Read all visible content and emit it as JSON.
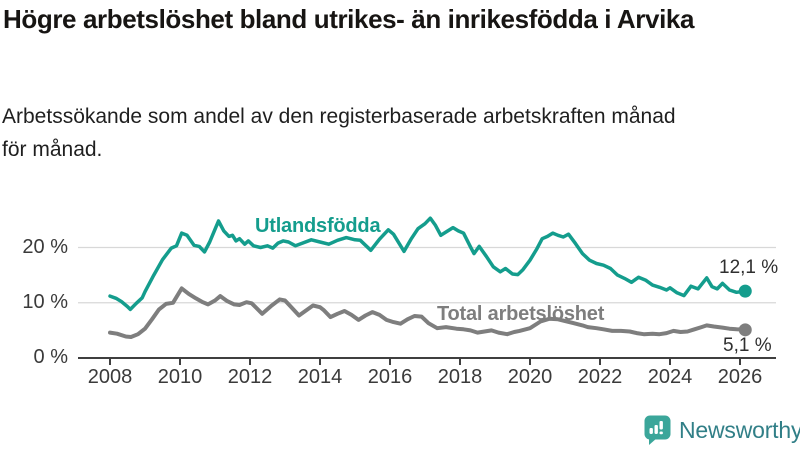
{
  "header": {
    "title": "Högre arbetslöshet bland utrikes- än inrikesfödda i Arvika",
    "subtitle": "Arbetssökande som andel av den registerbaserade arbetskraften månad för månad."
  },
  "chart_data": {
    "type": "line",
    "title": "Högre arbetslöshet bland utrikes- än inrikesfödda i Arvika",
    "subtitle": "Arbetssökande som andel av den registerbaserade arbetskraften månad för månad.",
    "unit": "%",
    "xlabel": "",
    "ylabel": "",
    "xlim": [
      2007.9,
      2026.6
    ],
    "ylim": [
      0,
      26
    ],
    "grid": "horizontal",
    "legend_position": "inline-labels",
    "x_ticks": [
      2008,
      2010,
      2012,
      2014,
      2016,
      2018,
      2020,
      2022,
      2024,
      2026
    ],
    "x_tick_labels": [
      "2008",
      "2010",
      "2012",
      "2014",
      "2016",
      "2018",
      "2020",
      "2022",
      "2024",
      "2026"
    ],
    "y_ticks": [
      {
        "value": 0,
        "label": "0 %"
      },
      {
        "value": 10,
        "label": "10 %"
      },
      {
        "value": 20,
        "label": "20 %"
      }
    ],
    "series": [
      {
        "name": "Utlandsfödda",
        "color": "#149d8d",
        "end_value": 12.1,
        "end_label": "12,1 %",
        "points": [
          [
            2008.0,
            11.2
          ],
          [
            2008.17,
            10.8
          ],
          [
            2008.33,
            10.2
          ],
          [
            2008.5,
            9.3
          ],
          [
            2008.58,
            8.8
          ],
          [
            2008.75,
            9.9
          ],
          [
            2008.92,
            10.9
          ],
          [
            2009.0,
            12.0
          ],
          [
            2009.25,
            15.0
          ],
          [
            2009.5,
            17.8
          ],
          [
            2009.75,
            19.9
          ],
          [
            2009.9,
            20.3
          ],
          [
            2010.05,
            22.6
          ],
          [
            2010.2,
            22.2
          ],
          [
            2010.4,
            20.4
          ],
          [
            2010.55,
            20.2
          ],
          [
            2010.7,
            19.2
          ],
          [
            2010.85,
            21.0
          ],
          [
            2011.0,
            23.3
          ],
          [
            2011.1,
            24.8
          ],
          [
            2011.25,
            23.0
          ],
          [
            2011.4,
            22.0
          ],
          [
            2011.5,
            22.2
          ],
          [
            2011.6,
            21.2
          ],
          [
            2011.7,
            21.6
          ],
          [
            2011.85,
            20.6
          ],
          [
            2011.95,
            21.2
          ],
          [
            2012.1,
            20.3
          ],
          [
            2012.3,
            20.0
          ],
          [
            2012.5,
            20.3
          ],
          [
            2012.65,
            19.9
          ],
          [
            2012.8,
            20.8
          ],
          [
            2012.95,
            21.2
          ],
          [
            2013.1,
            21.0
          ],
          [
            2013.3,
            20.3
          ],
          [
            2013.5,
            20.8
          ],
          [
            2013.75,
            21.4
          ],
          [
            2014.0,
            21.0
          ],
          [
            2014.25,
            20.6
          ],
          [
            2014.5,
            21.3
          ],
          [
            2014.75,
            21.8
          ],
          [
            2015.0,
            21.4
          ],
          [
            2015.15,
            21.3
          ],
          [
            2015.45,
            19.5
          ],
          [
            2015.7,
            21.5
          ],
          [
            2015.95,
            23.2
          ],
          [
            2016.1,
            22.4
          ],
          [
            2016.4,
            19.3
          ],
          [
            2016.6,
            21.5
          ],
          [
            2016.8,
            23.4
          ],
          [
            2017.0,
            24.3
          ],
          [
            2017.15,
            25.3
          ],
          [
            2017.3,
            24.0
          ],
          [
            2017.45,
            22.2
          ],
          [
            2017.6,
            22.8
          ],
          [
            2017.8,
            23.6
          ],
          [
            2017.95,
            23.0
          ],
          [
            2018.1,
            22.6
          ],
          [
            2018.3,
            20.1
          ],
          [
            2018.4,
            18.9
          ],
          [
            2018.55,
            20.2
          ],
          [
            2018.75,
            18.4
          ],
          [
            2018.95,
            16.5
          ],
          [
            2019.15,
            15.6
          ],
          [
            2019.3,
            16.2
          ],
          [
            2019.5,
            15.2
          ],
          [
            2019.65,
            15.1
          ],
          [
            2019.8,
            16.0
          ],
          [
            2020.0,
            17.7
          ],
          [
            2020.2,
            19.8
          ],
          [
            2020.35,
            21.6
          ],
          [
            2020.5,
            22.0
          ],
          [
            2020.65,
            22.6
          ],
          [
            2020.8,
            22.2
          ],
          [
            2020.95,
            21.9
          ],
          [
            2021.1,
            22.4
          ],
          [
            2021.3,
            20.7
          ],
          [
            2021.5,
            18.9
          ],
          [
            2021.7,
            17.7
          ],
          [
            2021.9,
            17.1
          ],
          [
            2022.1,
            16.8
          ],
          [
            2022.3,
            16.2
          ],
          [
            2022.5,
            15.0
          ],
          [
            2022.7,
            14.4
          ],
          [
            2022.9,
            13.7
          ],
          [
            2023.1,
            14.6
          ],
          [
            2023.3,
            14.1
          ],
          [
            2023.5,
            13.2
          ],
          [
            2023.7,
            12.8
          ],
          [
            2023.9,
            12.3
          ],
          [
            2024.0,
            12.7
          ],
          [
            2024.2,
            11.8
          ],
          [
            2024.4,
            11.3
          ],
          [
            2024.6,
            13.0
          ],
          [
            2024.8,
            12.5
          ],
          [
            2025.05,
            14.5
          ],
          [
            2025.2,
            12.9
          ],
          [
            2025.35,
            12.5
          ],
          [
            2025.5,
            13.5
          ],
          [
            2025.7,
            12.3
          ],
          [
            2025.9,
            11.9
          ],
          [
            2026.15,
            12.1
          ]
        ]
      },
      {
        "name": "Total arbetslöshet",
        "color": "#7e7e7e",
        "end_value": 5.1,
        "end_label": "5,1 %",
        "points": [
          [
            2008.0,
            4.6
          ],
          [
            2008.2,
            4.4
          ],
          [
            2008.45,
            3.9
          ],
          [
            2008.6,
            3.8
          ],
          [
            2008.8,
            4.3
          ],
          [
            2009.0,
            5.3
          ],
          [
            2009.2,
            7.0
          ],
          [
            2009.4,
            8.8
          ],
          [
            2009.6,
            9.8
          ],
          [
            2009.8,
            10.0
          ],
          [
            2010.05,
            12.6
          ],
          [
            2010.25,
            11.6
          ],
          [
            2010.45,
            10.8
          ],
          [
            2010.65,
            10.1
          ],
          [
            2010.8,
            9.7
          ],
          [
            2011.0,
            10.4
          ],
          [
            2011.15,
            11.2
          ],
          [
            2011.35,
            10.3
          ],
          [
            2011.55,
            9.7
          ],
          [
            2011.7,
            9.6
          ],
          [
            2011.9,
            10.1
          ],
          [
            2012.05,
            9.9
          ],
          [
            2012.35,
            8.0
          ],
          [
            2012.6,
            9.4
          ],
          [
            2012.85,
            10.6
          ],
          [
            2013.0,
            10.4
          ],
          [
            2013.15,
            9.4
          ],
          [
            2013.4,
            7.7
          ],
          [
            2013.6,
            8.6
          ],
          [
            2013.8,
            9.5
          ],
          [
            2014.0,
            9.2
          ],
          [
            2014.1,
            8.7
          ],
          [
            2014.3,
            7.4
          ],
          [
            2014.5,
            8.0
          ],
          [
            2014.7,
            8.5
          ],
          [
            2014.9,
            7.8
          ],
          [
            2015.1,
            6.9
          ],
          [
            2015.3,
            7.7
          ],
          [
            2015.5,
            8.3
          ],
          [
            2015.7,
            7.8
          ],
          [
            2015.9,
            6.9
          ],
          [
            2016.1,
            6.5
          ],
          [
            2016.3,
            6.2
          ],
          [
            2016.5,
            7.0
          ],
          [
            2016.7,
            7.6
          ],
          [
            2016.9,
            7.5
          ],
          [
            2017.1,
            6.3
          ],
          [
            2017.35,
            5.4
          ],
          [
            2017.6,
            5.6
          ],
          [
            2017.9,
            5.3
          ],
          [
            2018.1,
            5.2
          ],
          [
            2018.3,
            5.0
          ],
          [
            2018.5,
            4.6
          ],
          [
            2018.7,
            4.8
          ],
          [
            2018.9,
            5.0
          ],
          [
            2019.1,
            4.6
          ],
          [
            2019.35,
            4.3
          ],
          [
            2019.55,
            4.7
          ],
          [
            2019.7,
            4.9
          ],
          [
            2020.0,
            5.4
          ],
          [
            2020.3,
            6.6
          ],
          [
            2020.55,
            7.1
          ],
          [
            2020.8,
            7.0
          ],
          [
            2021.0,
            6.7
          ],
          [
            2021.25,
            6.3
          ],
          [
            2021.5,
            5.9
          ],
          [
            2021.65,
            5.6
          ],
          [
            2021.9,
            5.4
          ],
          [
            2022.1,
            5.2
          ],
          [
            2022.35,
            4.9
          ],
          [
            2022.6,
            4.9
          ],
          [
            2022.85,
            4.8
          ],
          [
            2023.05,
            4.5
          ],
          [
            2023.25,
            4.3
          ],
          [
            2023.5,
            4.4
          ],
          [
            2023.7,
            4.3
          ],
          [
            2023.9,
            4.5
          ],
          [
            2024.1,
            4.9
          ],
          [
            2024.3,
            4.7
          ],
          [
            2024.5,
            4.8
          ],
          [
            2024.7,
            5.2
          ],
          [
            2024.9,
            5.6
          ],
          [
            2025.05,
            5.9
          ],
          [
            2025.25,
            5.7
          ],
          [
            2025.5,
            5.5
          ],
          [
            2025.7,
            5.3
          ],
          [
            2025.9,
            5.2
          ],
          [
            2026.15,
            5.1
          ]
        ]
      }
    ]
  },
  "branding": {
    "name": "Newsworthy",
    "icon_color": "#3ba69a",
    "text_color": "#317f87"
  }
}
